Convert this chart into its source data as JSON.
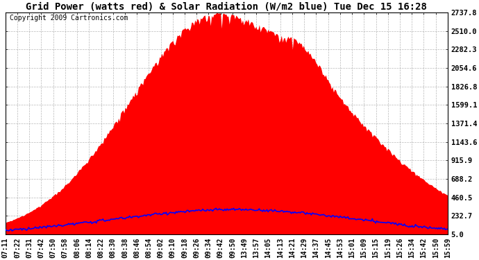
{
  "title": "Grid Power (watts red) & Solar Radiation (W/m2 blue) Tue Dec 15 16:28",
  "copyright": "Copyright 2009 Cartronics.com",
  "bg_color": "#ffffff",
  "plot_bg_color": "#ffffff",
  "grid_color": "#888888",
  "yticks": [
    5.0,
    232.7,
    460.5,
    688.2,
    915.9,
    1143.6,
    1371.4,
    1599.1,
    1826.8,
    2054.6,
    2282.3,
    2510.0,
    2737.8
  ],
  "xtick_labels": [
    "07:11",
    "07:22",
    "07:31",
    "07:42",
    "07:50",
    "07:58",
    "08:06",
    "08:14",
    "08:22",
    "08:30",
    "08:38",
    "08:46",
    "08:54",
    "09:02",
    "09:10",
    "09:18",
    "09:26",
    "09:34",
    "09:42",
    "09:50",
    "13:49",
    "13:57",
    "14:05",
    "14:13",
    "14:21",
    "14:29",
    "14:37",
    "14:45",
    "14:53",
    "15:01",
    "15:09",
    "15:15",
    "15:19",
    "15:26",
    "15:34",
    "15:42",
    "15:50",
    "15:59"
  ],
  "ymin": 5.0,
  "ymax": 2737.8,
  "red_color": "#ff0000",
  "blue_color": "#0000ff",
  "title_fontsize": 10,
  "copyright_fontsize": 7,
  "tick_fontsize": 7,
  "ytick_fontsize": 7.5,
  "border_color": "#000000"
}
